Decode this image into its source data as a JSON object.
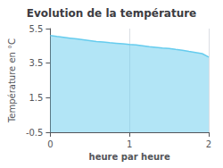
{
  "chart_data": {
    "type": "area",
    "title": "Evolution de la température",
    "xlabel": "heure par heure",
    "ylabel": "Température en °C",
    "x": [
      0,
      0.083,
      0.167,
      0.25,
      0.333,
      0.417,
      0.5,
      0.583,
      0.667,
      0.75,
      0.833,
      0.917,
      1.0,
      1.083,
      1.167,
      1.25,
      1.333,
      1.417,
      1.5,
      1.583,
      1.667,
      1.75,
      1.833,
      1.917,
      2.0
    ],
    "values": [
      5.1,
      5.05,
      5.0,
      4.95,
      4.9,
      4.85,
      4.8,
      4.75,
      4.72,
      4.68,
      4.65,
      4.62,
      4.58,
      4.55,
      4.5,
      4.45,
      4.42,
      4.38,
      4.35,
      4.3,
      4.25,
      4.18,
      4.12,
      4.05,
      3.85
    ],
    "color": "#66ccee",
    "xlim": [
      0,
      2
    ],
    "ylim": [
      -0.5,
      5.5
    ],
    "xticks": [
      0,
      1,
      2
    ],
    "yticks": [
      -0.5,
      1.5,
      3.5,
      5.5
    ],
    "grid": "x"
  }
}
